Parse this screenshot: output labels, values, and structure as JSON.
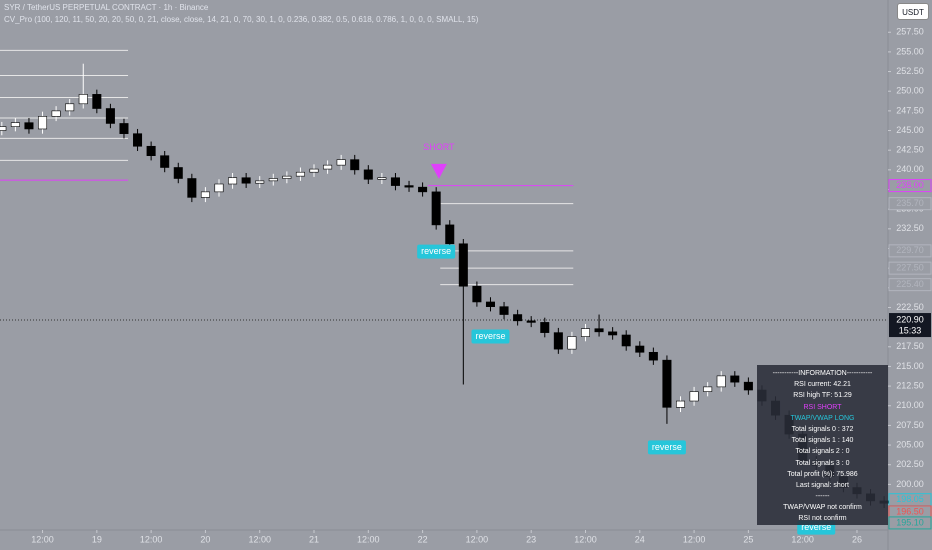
{
  "chart_data": {
    "type": "candlestick",
    "title": "SYR / TetherUS PERPETUAL CONTRACT · 1h · Binance",
    "subtitle": "CV_Pro (100, 120, 11, 50, 20, 20, 50, 0, 21, close, close, 14, 21, 0, 70, 30, 1, 0, 0.236, 0.382, 0.5, 0.618, 0.786, 1, 0, 0, 0, SMALL, 15)",
    "x": [
      3,
      6,
      9,
      12,
      15,
      18,
      21,
      24,
      27,
      30,
      33,
      36,
      39,
      42,
      45,
      48,
      51,
      54,
      57,
      60,
      63,
      66,
      69,
      72,
      75,
      78,
      81,
      84,
      87,
      90,
      93,
      96,
      99,
      102,
      105,
      108,
      111,
      114,
      117,
      120,
      123,
      126,
      129,
      132,
      135,
      138,
      141,
      144,
      147,
      150,
      153,
      156,
      159,
      162,
      165,
      168,
      171,
      174,
      177,
      180,
      183,
      186,
      189,
      192,
      195,
      198
    ],
    "open": [
      245.0,
      245.5,
      246.0,
      245.2,
      246.8,
      247.5,
      248.4,
      249.6,
      247.8,
      245.9,
      244.6,
      243.0,
      241.8,
      240.3,
      238.9,
      236.5,
      237.2,
      238.2,
      239.0,
      238.3,
      238.6,
      238.9,
      239.2,
      239.7,
      240.1,
      240.6,
      241.3,
      240.0,
      238.8,
      239.0,
      238.0,
      237.8,
      237.2,
      233.0,
      230.6,
      225.2,
      223.2,
      222.6,
      221.6,
      220.8,
      220.6,
      219.3,
      217.2,
      218.8,
      219.8,
      219.4,
      219.0,
      217.6,
      216.8,
      215.8,
      209.8,
      210.6,
      211.8,
      212.4,
      213.8,
      213.0,
      212.0,
      210.6,
      208.8,
      206.4,
      203.0,
      202.4,
      201.0,
      199.6,
      198.8,
      197.9
    ],
    "high": [
      246.1,
      246.6,
      246.6,
      247.4,
      248.1,
      249.0,
      253.5,
      250.2,
      248.4,
      246.5,
      245.2,
      243.6,
      242.4,
      240.9,
      239.5,
      237.8,
      238.8,
      239.6,
      239.6,
      239.2,
      239.5,
      239.8,
      240.3,
      240.7,
      241.2,
      241.9,
      241.9,
      240.6,
      239.6,
      239.6,
      238.6,
      238.4,
      237.8,
      233.6,
      231.2,
      225.8,
      223.8,
      223.2,
      222.2,
      221.4,
      221.2,
      219.9,
      219.4,
      220.4,
      221.6,
      220.0,
      219.6,
      218.2,
      217.4,
      216.4,
      211.2,
      212.4,
      213.0,
      214.4,
      214.4,
      213.6,
      212.6,
      211.2,
      209.4,
      207.0,
      203.6,
      203.0,
      201.6,
      200.2,
      199.4,
      198.5
    ],
    "low": [
      244.4,
      244.9,
      244.6,
      244.6,
      246.2,
      246.9,
      247.8,
      247.2,
      245.3,
      244.0,
      242.4,
      241.2,
      239.7,
      238.3,
      235.9,
      235.9,
      236.6,
      237.6,
      237.7,
      237.7,
      238.0,
      238.3,
      238.6,
      239.1,
      239.5,
      240.0,
      239.4,
      238.2,
      238.2,
      237.4,
      237.2,
      236.6,
      232.4,
      230.0,
      212.7,
      222.6,
      222.0,
      221.0,
      220.2,
      220.0,
      218.7,
      216.6,
      216.6,
      218.2,
      218.8,
      218.4,
      217.0,
      216.2,
      215.2,
      207.7,
      209.2,
      210.0,
      211.2,
      211.8,
      212.4,
      211.4,
      210.0,
      208.2,
      205.8,
      202.4,
      201.8,
      200.4,
      199.0,
      198.2,
      197.3,
      197.0
    ],
    "close": [
      245.5,
      246.0,
      245.2,
      246.8,
      247.5,
      248.4,
      249.6,
      247.8,
      245.9,
      244.6,
      243.0,
      241.8,
      240.3,
      238.9,
      236.5,
      237.2,
      238.2,
      239.0,
      238.3,
      238.6,
      238.9,
      239.2,
      239.7,
      240.1,
      240.6,
      241.3,
      240.0,
      238.8,
      239.0,
      238.0,
      237.8,
      237.2,
      233.0,
      230.6,
      225.2,
      223.2,
      222.6,
      221.6,
      220.8,
      220.6,
      219.3,
      217.2,
      218.8,
      219.8,
      219.4,
      219.0,
      217.6,
      216.8,
      215.8,
      209.8,
      210.6,
      211.8,
      212.4,
      213.8,
      213.0,
      212.0,
      210.6,
      208.8,
      206.4,
      203.0,
      202.4,
      201.0,
      199.6,
      198.8,
      197.9,
      197.6
    ],
    "up_color": "#ffffff",
    "down_color": "#000000",
    "xlim": [
      2.6,
      199.3
    ],
    "ylim": [
      194.2,
      261.6
    ],
    "xticks": [
      {
        "value": 12,
        "label": "12:00"
      },
      {
        "value": 24,
        "label": "19"
      },
      {
        "value": 36,
        "label": "12:00"
      },
      {
        "value": 48,
        "label": "20"
      },
      {
        "value": 60,
        "label": "12:00"
      },
      {
        "value": 72,
        "label": "21"
      },
      {
        "value": 84,
        "label": "12:00"
      },
      {
        "value": 96,
        "label": "22"
      },
      {
        "value": 108,
        "label": "12:00"
      },
      {
        "value": 120,
        "label": "23"
      },
      {
        "value": 132,
        "label": "12:00"
      },
      {
        "value": 144,
        "label": "24"
      },
      {
        "value": 156,
        "label": "12:00"
      },
      {
        "value": 168,
        "label": "25"
      },
      {
        "value": 180,
        "label": "12:00"
      },
      {
        "value": 192,
        "label": "26"
      }
    ],
    "yticks": [
      {
        "value": 257.5,
        "label": "257.50"
      },
      {
        "value": 255,
        "label": "255.00"
      },
      {
        "value": 252.5,
        "label": "252.50"
      },
      {
        "value": 250,
        "label": "250.00"
      },
      {
        "value": 247.5,
        "label": "247.50"
      },
      {
        "value": 245,
        "label": "245.00"
      },
      {
        "value": 242.5,
        "label": "242.50"
      },
      {
        "value": 240,
        "label": "240.00"
      },
      {
        "value": 237.5,
        "label": "237.50"
      },
      {
        "value": 235,
        "label": "235.00"
      },
      {
        "value": 232.5,
        "label": "232.50"
      },
      {
        "value": 230,
        "label": "230.00"
      },
      {
        "value": 227.5,
        "label": "227.50"
      },
      {
        "value": 225,
        "label": "225.00"
      },
      {
        "value": 222.5,
        "label": "222.50"
      },
      {
        "value": 217.5,
        "label": "217.50"
      },
      {
        "value": 215,
        "label": "215.00"
      },
      {
        "value": 212.5,
        "label": "212.50"
      },
      {
        "value": 210,
        "label": "210.00"
      },
      {
        "value": 207.5,
        "label": "207.50"
      },
      {
        "value": 205,
        "label": "205.00"
      },
      {
        "value": 202.5,
        "label": "202.50"
      },
      {
        "value": 200,
        "label": "200.00"
      },
      {
        "value": 197.5,
        "label": "197.50"
      }
    ],
    "levels": [
      {
        "from": 2.6,
        "to": 30.9,
        "price": 255.2,
        "color": "#e6e6e6"
      },
      {
        "from": 2.6,
        "to": 30.9,
        "price": 252.0,
        "color": "#e6e6e6"
      },
      {
        "from": 2.6,
        "to": 30.9,
        "price": 249.2,
        "color": "#e6e6e6"
      },
      {
        "from": 2.6,
        "to": 30.9,
        "price": 246.6,
        "color": "#e6e6e6"
      },
      {
        "from": 2.6,
        "to": 30.9,
        "price": 244.0,
        "color": "#e6e6e6"
      },
      {
        "from": 2.6,
        "to": 30.9,
        "price": 241.2,
        "color": "#e6e6e6"
      },
      {
        "from": 2.6,
        "to": 30.9,
        "price": 238.7,
        "color": "#e040fb"
      },
      {
        "from": 97.2,
        "to": 129.3,
        "price": 238.0,
        "color": "#e040fb"
      },
      {
        "from": 99.9,
        "to": 129.3,
        "price": 235.7,
        "color": "#e6e6e6"
      },
      {
        "from": 99.9,
        "to": 129.3,
        "price": 229.7,
        "color": "#e6e6e6"
      },
      {
        "from": 99.9,
        "to": 129.3,
        "price": 227.5,
        "color": "#e6e6e6"
      },
      {
        "from": 99.9,
        "to": 129.3,
        "price": 225.4,
        "color": "#e6e6e6"
      }
    ],
    "price_tags": [
      {
        "price": 238.0,
        "label": "238.00",
        "color": "#e040fb"
      },
      {
        "price": 235.7,
        "label": "235.70",
        "color": "#b2b5be"
      },
      {
        "price": 229.7,
        "label": "229.70",
        "color": "#b2b5be"
      },
      {
        "price": 227.5,
        "label": "227.50",
        "color": "#b2b5be"
      },
      {
        "price": 225.4,
        "label": "225.40",
        "color": "#b2b5be"
      },
      {
        "price": 198.05,
        "label": "198.05",
        "color": "#26c6da"
      },
      {
        "price": 196.5,
        "label": "196.50",
        "color": "#ef5350"
      },
      {
        "price": 195.1,
        "label": "195.10",
        "color": "#26a69a"
      }
    ],
    "last_price": {
      "value": 220.9,
      "label": "220.90"
    },
    "countdown": "15:33",
    "signals": [
      {
        "x": 99.6,
        "price": 242.8,
        "text": "SHORT",
        "color": "#e040fb"
      },
      {
        "x": 99.0,
        "price": 229.6,
        "text": "reverse",
        "color": "#26c6da"
      },
      {
        "x": 111.0,
        "price": 218.8,
        "text": "reverse",
        "color": "#26c6da"
      },
      {
        "x": 150.0,
        "price": 204.7,
        "text": "reverse",
        "color": "#26c6da"
      },
      {
        "x": 183.0,
        "price": 194.5,
        "text": "reverse",
        "color": "#26c6da"
      }
    ]
  },
  "info_panel": {
    "rows": [
      {
        "text": "-----------INFORMATION-----------",
        "color": "#ffffff"
      },
      {
        "text": "RSI current: 42.21",
        "color": "#ffffff"
      },
      {
        "text": "RSI high TF: 51.29",
        "color": "#ffffff"
      },
      {
        "text": "RSI SHORT",
        "color": "#e040fb"
      },
      {
        "text": "TWAP/VWAP LONG",
        "color": "#26c6da"
      },
      {
        "text": "Total signals 0 : 372",
        "color": "#ffffff"
      },
      {
        "text": "Total signals 1 : 140",
        "color": "#ffffff"
      },
      {
        "text": "Total signals 2 : 0",
        "color": "#ffffff"
      },
      {
        "text": "Total signals 3 : 0",
        "color": "#ffffff"
      },
      {
        "text": "Total profit (%): 75.986",
        "color": "#ffffff"
      },
      {
        "text": "Last signal: short",
        "color": "#ffffff"
      },
      {
        "text": "------",
        "color": "#ffffff"
      },
      {
        "text": "TWAP/VWAP not confirm",
        "color": "#ffffff"
      },
      {
        "text": "RSI not confirm",
        "color": "#ffffff"
      }
    ]
  },
  "ui": {
    "currency_button": "USDT"
  }
}
